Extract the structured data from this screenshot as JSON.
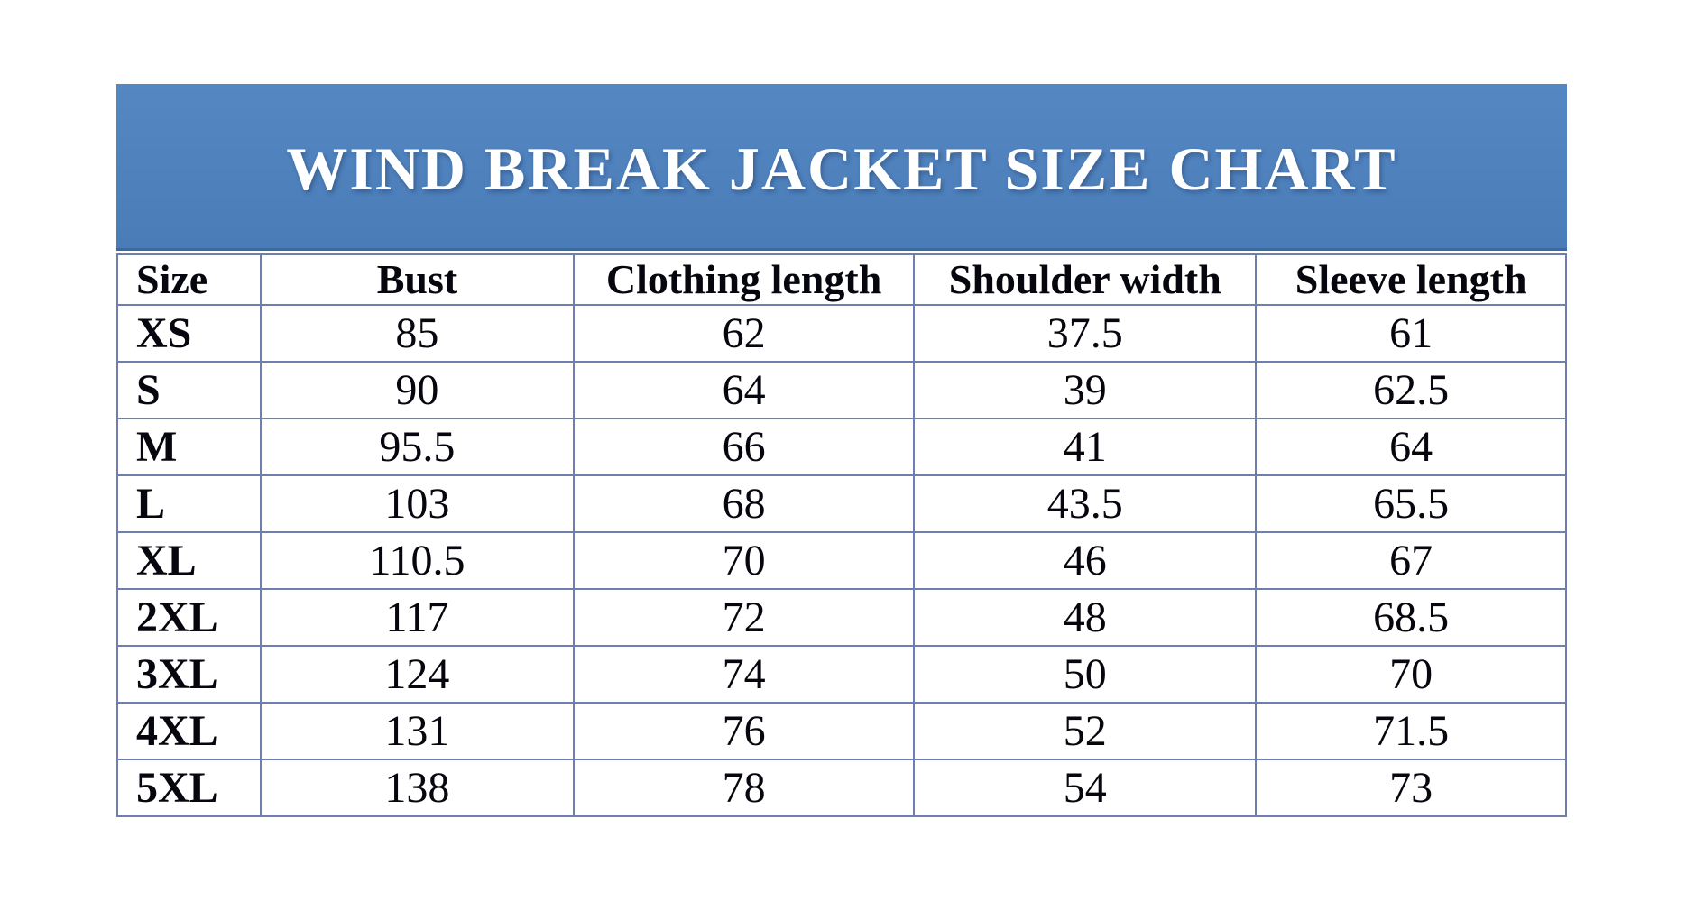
{
  "page": {
    "background_color": "#ffffff",
    "text_color": "#06060e"
  },
  "banner": {
    "title": "WIND BREAK JACKET SIZE CHART",
    "background_color": "#4f81bd",
    "bottom_edge_color": "#3a6aa6",
    "title_color": "#ffffff"
  },
  "table": {
    "border_color": "#6e7eae",
    "headers": [
      "Size",
      "Bust",
      "Clothing length",
      "Shoulder width",
      "Sleeve length"
    ],
    "rows": [
      [
        "XS",
        "85",
        "62",
        "37.5",
        "61"
      ],
      [
        "S",
        "90",
        "64",
        "39",
        "62.5"
      ],
      [
        "M",
        "95.5",
        "66",
        "41",
        "64"
      ],
      [
        "L",
        "103",
        "68",
        "43.5",
        "65.5"
      ],
      [
        "XL",
        "110.5",
        "70",
        "46",
        "67"
      ],
      [
        "2XL",
        "117",
        "72",
        "48",
        "68.5"
      ],
      [
        "3XL",
        "124",
        "74",
        "50",
        "70"
      ],
      [
        "4XL",
        "131",
        "76",
        "52",
        "71.5"
      ],
      [
        "5XL",
        "138",
        "78",
        "54",
        "73"
      ]
    ]
  },
  "chart_data": {
    "type": "table",
    "title": "WIND BREAK JACKET SIZE CHART",
    "columns": [
      "Size",
      "Bust",
      "Clothing length",
      "Shoulder width",
      "Sleeve length"
    ],
    "rows": [
      {
        "size": "XS",
        "bust": 85,
        "clothing_length": 62,
        "shoulder_width": 37.5,
        "sleeve_length": 61
      },
      {
        "size": "S",
        "bust": 90,
        "clothing_length": 64,
        "shoulder_width": 39,
        "sleeve_length": 62.5
      },
      {
        "size": "M",
        "bust": 95.5,
        "clothing_length": 66,
        "shoulder_width": 41,
        "sleeve_length": 64
      },
      {
        "size": "L",
        "bust": 103,
        "clothing_length": 68,
        "shoulder_width": 43.5,
        "sleeve_length": 65.5
      },
      {
        "size": "XL",
        "bust": 110.5,
        "clothing_length": 70,
        "shoulder_width": 46,
        "sleeve_length": 67
      },
      {
        "size": "2XL",
        "bust": 117,
        "clothing_length": 72,
        "shoulder_width": 48,
        "sleeve_length": 68.5
      },
      {
        "size": "3XL",
        "bust": 124,
        "clothing_length": 74,
        "shoulder_width": 50,
        "sleeve_length": 70
      },
      {
        "size": "4XL",
        "bust": 131,
        "clothing_length": 76,
        "shoulder_width": 52,
        "sleeve_length": 71.5
      },
      {
        "size": "5XL",
        "bust": 138,
        "clothing_length": 78,
        "shoulder_width": 54,
        "sleeve_length": 73
      }
    ]
  }
}
